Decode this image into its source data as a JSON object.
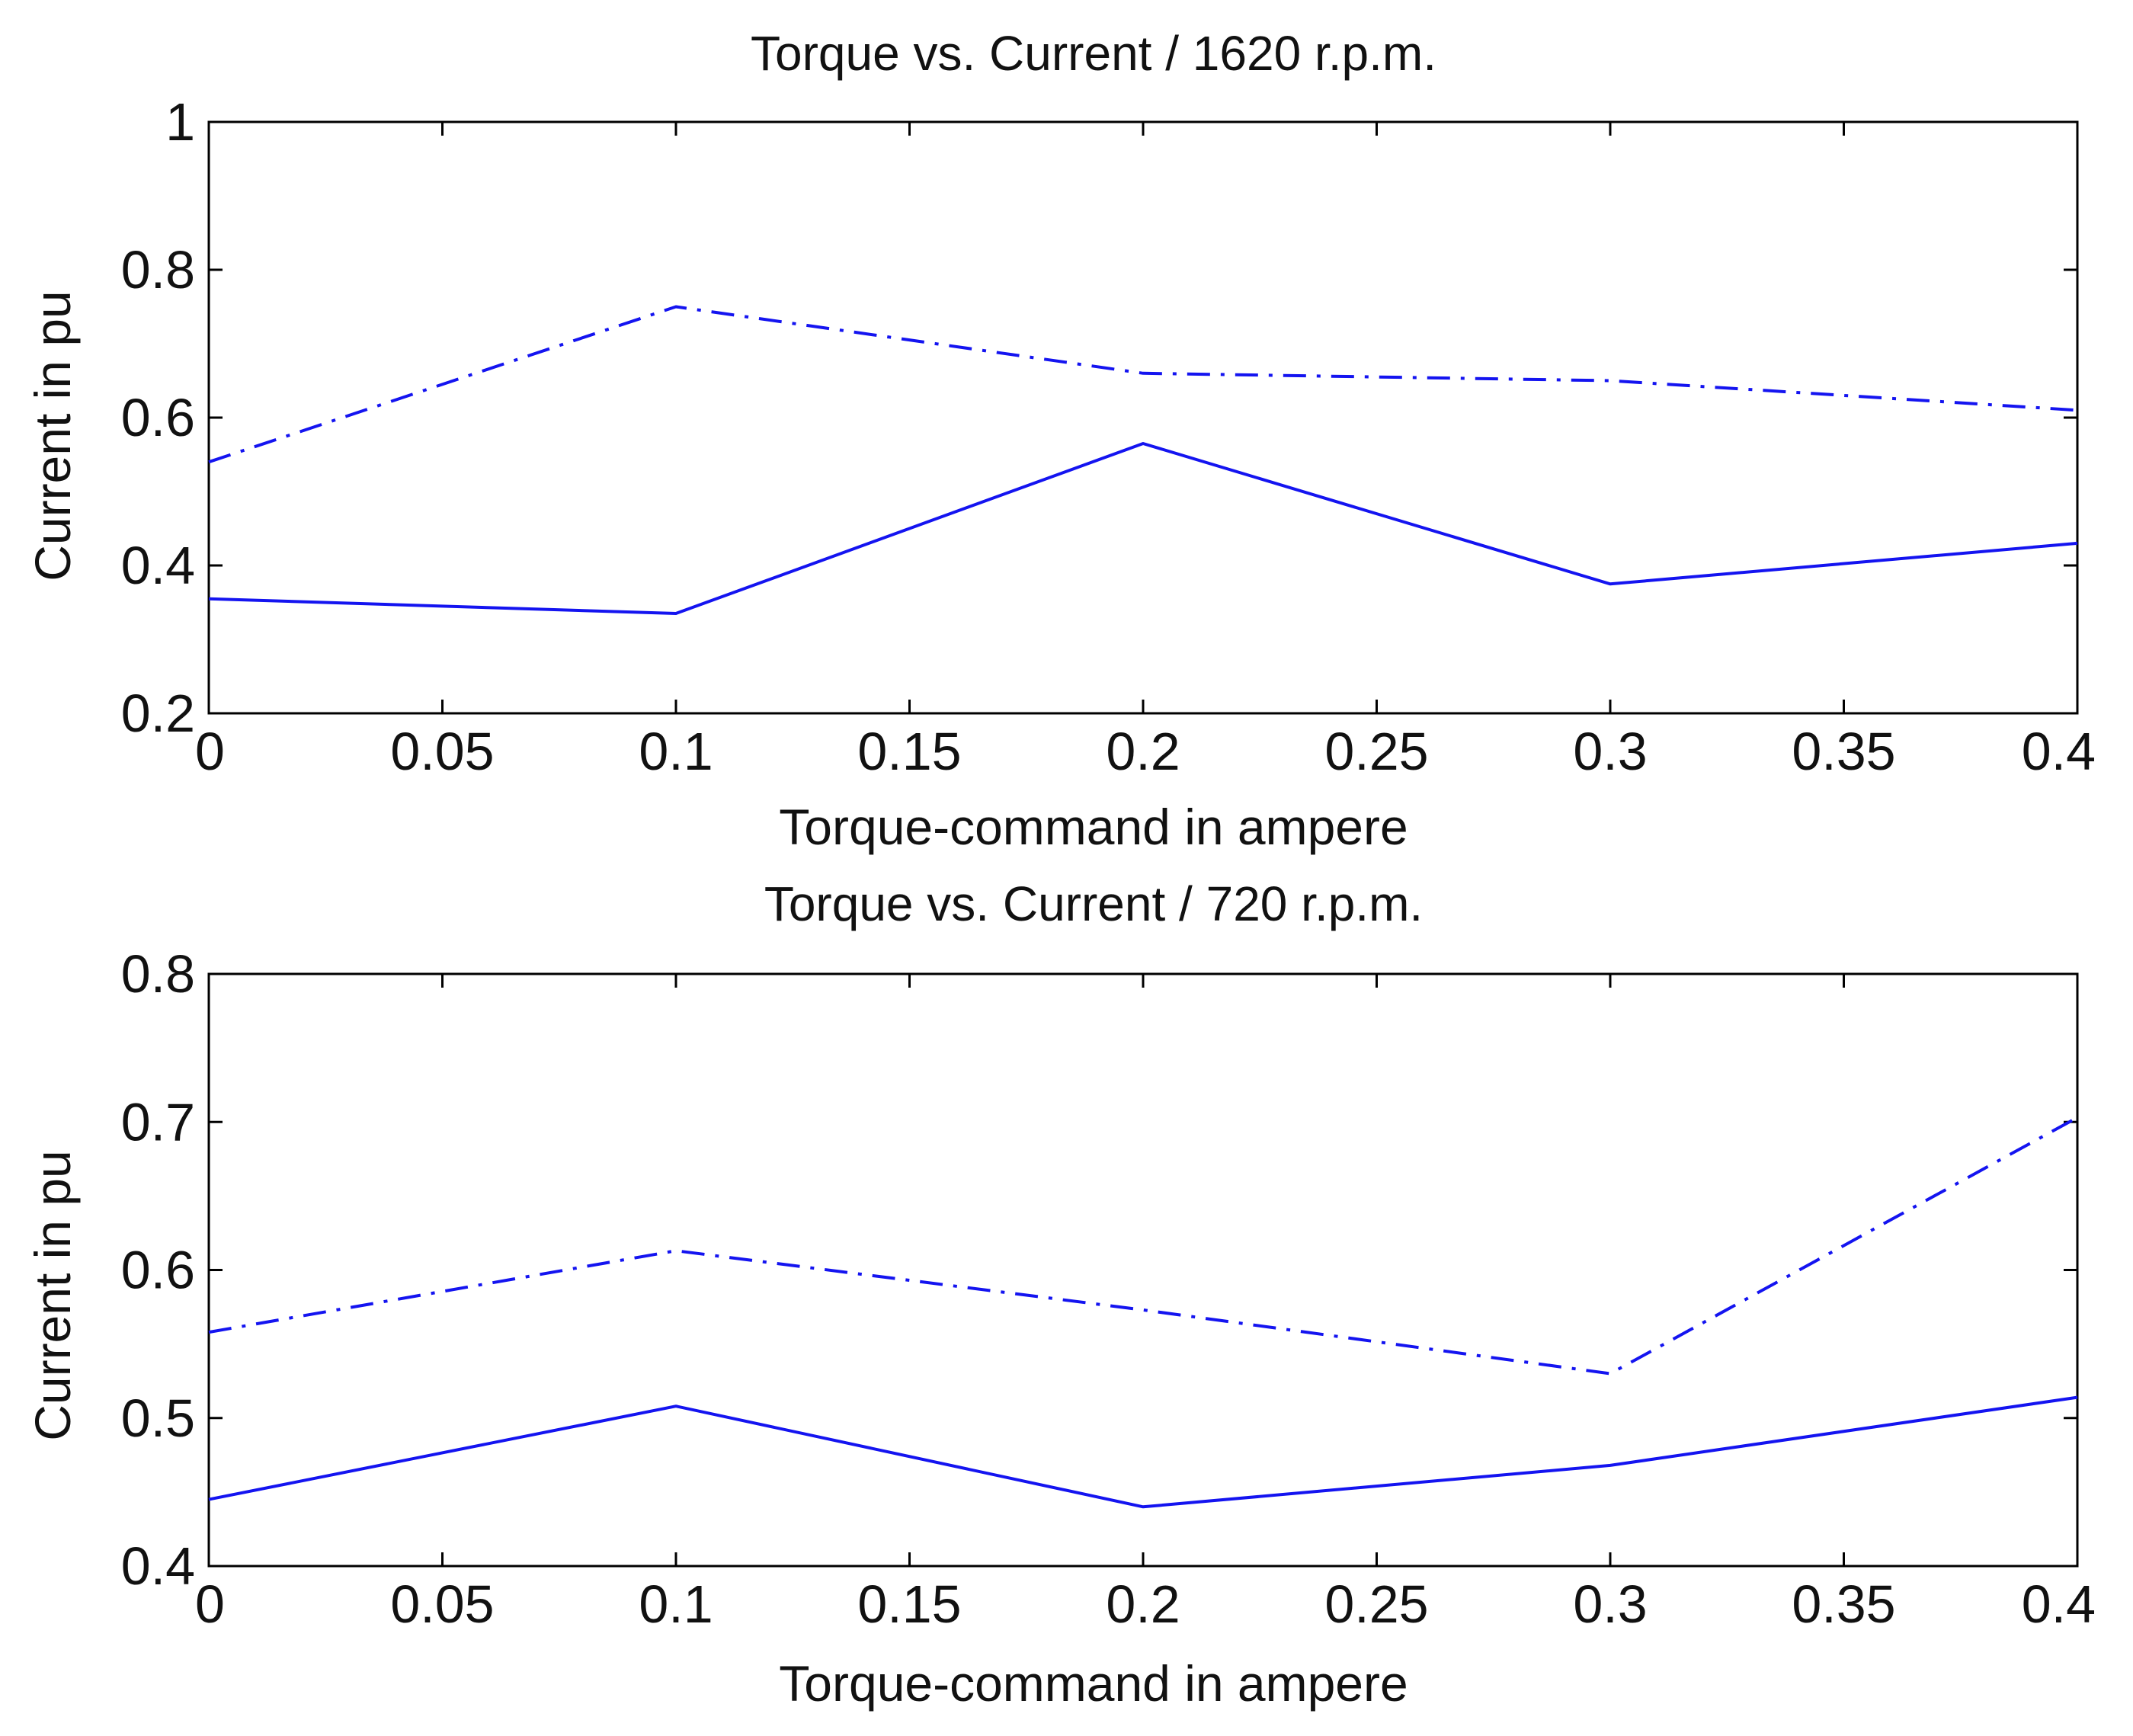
{
  "chart_data": [
    {
      "type": "line",
      "title": "Torque vs. Current / 1620 r.p.m.",
      "xlabel": "Torque-command in ampere",
      "ylabel": "Current in pu",
      "xlim": [
        0,
        0.4
      ],
      "ylim": [
        0.2,
        1
      ],
      "grid": false,
      "x": [
        0,
        0.1,
        0.2,
        0.3,
        0.4
      ],
      "xticks": [
        "0",
        "0.05",
        "0.1",
        "0.15",
        "0.2",
        "0.25",
        "0.3",
        "0.35",
        "0.4"
      ],
      "yticks": [
        "0.2",
        "0.4",
        "0.6",
        "0.8",
        "1"
      ],
      "series": [
        {
          "name": "dash-dot",
          "style": "dash-dot",
          "color": "#1414f0",
          "values": [
            0.54,
            0.75,
            0.66,
            0.65,
            0.61
          ]
        },
        {
          "name": "solid",
          "style": "solid",
          "color": "#1414f0",
          "values": [
            0.355,
            0.335,
            0.565,
            0.375,
            0.43
          ]
        }
      ]
    },
    {
      "type": "line",
      "title": "Torque vs. Current / 720 r.p.m.",
      "xlabel": "Torque-command in ampere",
      "ylabel": "Current in pu",
      "xlim": [
        0,
        0.4
      ],
      "ylim": [
        0.4,
        0.8
      ],
      "grid": false,
      "x": [
        0,
        0.1,
        0.2,
        0.3,
        0.4
      ],
      "xticks": [
        "0",
        "0.05",
        "0.1",
        "0.15",
        "0.2",
        "0.25",
        "0.3",
        "0.35",
        "0.4"
      ],
      "yticks": [
        "0.4",
        "0.5",
        "0.6",
        "0.7",
        "0.8"
      ],
      "series": [
        {
          "name": "dash-dot",
          "style": "dash-dot",
          "color": "#1414f0",
          "values": [
            0.558,
            0.613,
            0.573,
            0.53,
            0.703
          ]
        },
        {
          "name": "solid",
          "style": "solid",
          "color": "#1414f0",
          "values": [
            0.445,
            0.508,
            0.44,
            0.468,
            0.514
          ]
        }
      ]
    }
  ]
}
